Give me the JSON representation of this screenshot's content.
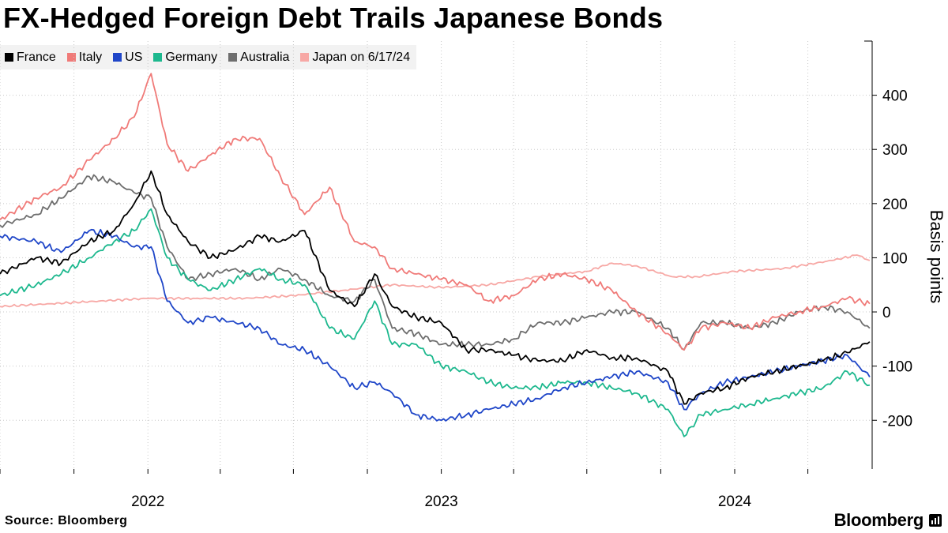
{
  "source": "Source: Bloomberg",
  "brand": "Bloomberg",
  "chart_data": {
    "type": "line",
    "title": "FX-Hedged Foreign Debt Trails Japanese Bonds",
    "ylabel": "Basis points",
    "ylim": [
      -290,
      500
    ],
    "yticks": [
      400,
      300,
      200,
      100,
      0,
      -100,
      -200
    ],
    "xlim": [
      "2021-07-01",
      "2024-06-20"
    ],
    "xticks": [
      {
        "date": "2022-01-01",
        "label": "2022"
      },
      {
        "date": "2023-01-01",
        "label": "2023"
      },
      {
        "date": "2024-01-01",
        "label": "2024"
      }
    ],
    "grid": {
      "horizontal": true,
      "vertical": true
    },
    "legend": "top-left",
    "series": [
      {
        "name": "France",
        "color": "#000000",
        "x": [
          "2021-07-01",
          "2021-08-15",
          "2021-09-15",
          "2021-10-20",
          "2021-11-20",
          "2021-12-15",
          "2022-01-05",
          "2022-01-25",
          "2022-02-20",
          "2022-03-20",
          "2022-04-20",
          "2022-05-20",
          "2022-06-15",
          "2022-07-15",
          "2022-08-15",
          "2022-09-15",
          "2022-10-10",
          "2022-11-01",
          "2022-12-01",
          "2023-01-01",
          "2023-02-01",
          "2023-03-01",
          "2023-04-01",
          "2023-05-01",
          "2023-06-01",
          "2023-07-01",
          "2023-08-01",
          "2023-09-01",
          "2023-10-10",
          "2023-10-30",
          "2023-11-20",
          "2023-12-20",
          "2024-01-20",
          "2024-02-20",
          "2024-03-20",
          "2024-04-20",
          "2024-05-20",
          "2024-06-17"
        ],
        "y": [
          70,
          100,
          90,
          130,
          150,
          200,
          260,
          180,
          130,
          100,
          115,
          140,
          130,
          150,
          40,
          10,
          70,
          10,
          -10,
          -20,
          -70,
          -70,
          -80,
          -90,
          -90,
          -70,
          -85,
          -85,
          -110,
          -170,
          -150,
          -140,
          -120,
          -110,
          -100,
          -90,
          -75,
          -55
        ]
      },
      {
        "name": "Italy",
        "color": "#f07a78",
        "x": [
          "2021-07-01",
          "2021-08-15",
          "2021-09-15",
          "2021-10-20",
          "2021-11-20",
          "2021-12-15",
          "2022-01-05",
          "2022-01-25",
          "2022-02-20",
          "2022-03-20",
          "2022-04-20",
          "2022-05-20",
          "2022-06-15",
          "2022-07-15",
          "2022-08-15",
          "2022-09-15",
          "2022-10-10",
          "2022-11-01",
          "2022-12-01",
          "2023-01-01",
          "2023-02-01",
          "2023-03-01",
          "2023-04-01",
          "2023-05-01",
          "2023-06-01",
          "2023-07-01",
          "2023-08-01",
          "2023-09-01",
          "2023-10-10",
          "2023-10-30",
          "2023-11-20",
          "2023-12-20",
          "2024-01-20",
          "2024-02-20",
          "2024-03-20",
          "2024-04-20",
          "2024-05-20",
          "2024-06-17"
        ],
        "y": [
          170,
          210,
          230,
          280,
          320,
          360,
          440,
          310,
          260,
          290,
          320,
          320,
          250,
          180,
          230,
          130,
          120,
          80,
          70,
          60,
          50,
          20,
          30,
          60,
          70,
          60,
          40,
          0,
          -40,
          -70,
          -30,
          -20,
          -30,
          -10,
          0,
          10,
          25,
          15
        ]
      },
      {
        "name": "US",
        "color": "#1f46c8",
        "x": [
          "2021-07-01",
          "2021-08-15",
          "2021-09-15",
          "2021-10-20",
          "2021-11-20",
          "2021-12-15",
          "2022-01-05",
          "2022-01-25",
          "2022-02-20",
          "2022-03-20",
          "2022-04-20",
          "2022-05-20",
          "2022-06-15",
          "2022-07-15",
          "2022-08-15",
          "2022-09-15",
          "2022-10-10",
          "2022-11-01",
          "2022-12-01",
          "2023-01-01",
          "2023-02-01",
          "2023-03-01",
          "2023-04-01",
          "2023-05-01",
          "2023-06-01",
          "2023-07-01",
          "2023-08-01",
          "2023-09-01",
          "2023-10-10",
          "2023-10-30",
          "2023-11-20",
          "2023-12-20",
          "2024-01-20",
          "2024-02-20",
          "2024-03-20",
          "2024-04-20",
          "2024-05-20",
          "2024-06-17"
        ],
        "y": [
          140,
          130,
          110,
          150,
          140,
          120,
          120,
          20,
          -20,
          -10,
          -20,
          -30,
          -60,
          -70,
          -100,
          -140,
          -130,
          -150,
          -190,
          -200,
          -190,
          -180,
          -170,
          -160,
          -140,
          -130,
          -120,
          -110,
          -130,
          -180,
          -150,
          -130,
          -120,
          -110,
          -100,
          -90,
          -80,
          -120
        ]
      },
      {
        "name": "Germany",
        "color": "#1db88e",
        "x": [
          "2021-07-01",
          "2021-08-15",
          "2021-09-15",
          "2021-10-20",
          "2021-11-20",
          "2021-12-15",
          "2022-01-05",
          "2022-01-25",
          "2022-02-20",
          "2022-03-20",
          "2022-04-20",
          "2022-05-20",
          "2022-06-15",
          "2022-07-15",
          "2022-08-15",
          "2022-09-15",
          "2022-10-10",
          "2022-11-01",
          "2022-12-01",
          "2023-01-01",
          "2023-02-01",
          "2023-03-01",
          "2023-04-01",
          "2023-05-01",
          "2023-06-01",
          "2023-07-01",
          "2023-08-01",
          "2023-09-01",
          "2023-10-10",
          "2023-10-30",
          "2023-11-20",
          "2023-12-20",
          "2024-01-20",
          "2024-02-20",
          "2024-03-20",
          "2024-04-20",
          "2024-05-20",
          "2024-06-17"
        ],
        "y": [
          30,
          50,
          70,
          100,
          130,
          150,
          190,
          100,
          60,
          40,
          60,
          80,
          60,
          50,
          -30,
          -50,
          20,
          -60,
          -60,
          -100,
          -110,
          -130,
          -140,
          -140,
          -130,
          -130,
          -140,
          -150,
          -180,
          -230,
          -190,
          -180,
          -170,
          -160,
          -150,
          -140,
          -110,
          -135
        ]
      },
      {
        "name": "Australia",
        "color": "#6e6e6e",
        "x": [
          "2021-07-01",
          "2021-08-15",
          "2021-09-15",
          "2021-10-20",
          "2021-11-20",
          "2021-12-15",
          "2022-01-05",
          "2022-01-25",
          "2022-02-20",
          "2022-03-20",
          "2022-04-20",
          "2022-05-20",
          "2022-06-15",
          "2022-07-15",
          "2022-08-15",
          "2022-09-15",
          "2022-10-10",
          "2022-11-01",
          "2022-12-01",
          "2023-01-01",
          "2023-02-01",
          "2023-03-01",
          "2023-04-01",
          "2023-05-01",
          "2023-06-01",
          "2023-07-01",
          "2023-08-01",
          "2023-09-01",
          "2023-10-10",
          "2023-10-30",
          "2023-11-20",
          "2023-12-20",
          "2024-01-20",
          "2024-02-20",
          "2024-03-20",
          "2024-04-20",
          "2024-05-20",
          "2024-06-17"
        ],
        "y": [
          160,
          180,
          210,
          250,
          240,
          220,
          210,
          120,
          60,
          70,
          80,
          60,
          80,
          60,
          30,
          20,
          60,
          -30,
          -40,
          -60,
          -60,
          -60,
          -50,
          -20,
          -20,
          -10,
          0,
          0,
          -30,
          -70,
          -20,
          -20,
          -30,
          -20,
          0,
          10,
          0,
          -30
        ]
      },
      {
        "name": "Japan on 6/17/24",
        "color": "#f7a8a5",
        "x": [
          "2021-07-01",
          "2021-09-01",
          "2021-11-01",
          "2022-01-01",
          "2022-03-01",
          "2022-05-01",
          "2022-07-01",
          "2022-09-01",
          "2022-11-01",
          "2023-01-01",
          "2023-03-01",
          "2023-05-01",
          "2023-07-01",
          "2023-08-01",
          "2023-09-01",
          "2023-10-15",
          "2023-11-15",
          "2024-01-01",
          "2024-03-01",
          "2024-05-01",
          "2024-06-01",
          "2024-06-17"
        ],
        "y": [
          10,
          15,
          20,
          25,
          25,
          25,
          30,
          40,
          50,
          45,
          50,
          65,
          75,
          90,
          85,
          65,
          65,
          75,
          80,
          95,
          105,
          95
        ]
      }
    ]
  }
}
